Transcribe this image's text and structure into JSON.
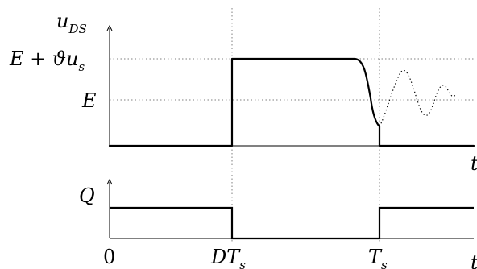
{
  "top_plot": {
    "y_axis_label_main": "u",
    "y_axis_label_sub": "DS",
    "level_high_main": "E + ",
    "level_high_theta": "ϑ",
    "level_high_u": "u",
    "level_high_sub": "s",
    "level_mid": "E",
    "x_axis_label": "t"
  },
  "bottom_plot": {
    "y_axis_label": "Q",
    "x_axis_label": "t",
    "tick_zero": "0",
    "tick_dts_main": "DT",
    "tick_dts_sub": "s",
    "tick_ts_main": "T",
    "tick_ts_sub": "s"
  },
  "colors": {
    "stroke": "#000000",
    "guide": "#7f7f7f"
  }
}
